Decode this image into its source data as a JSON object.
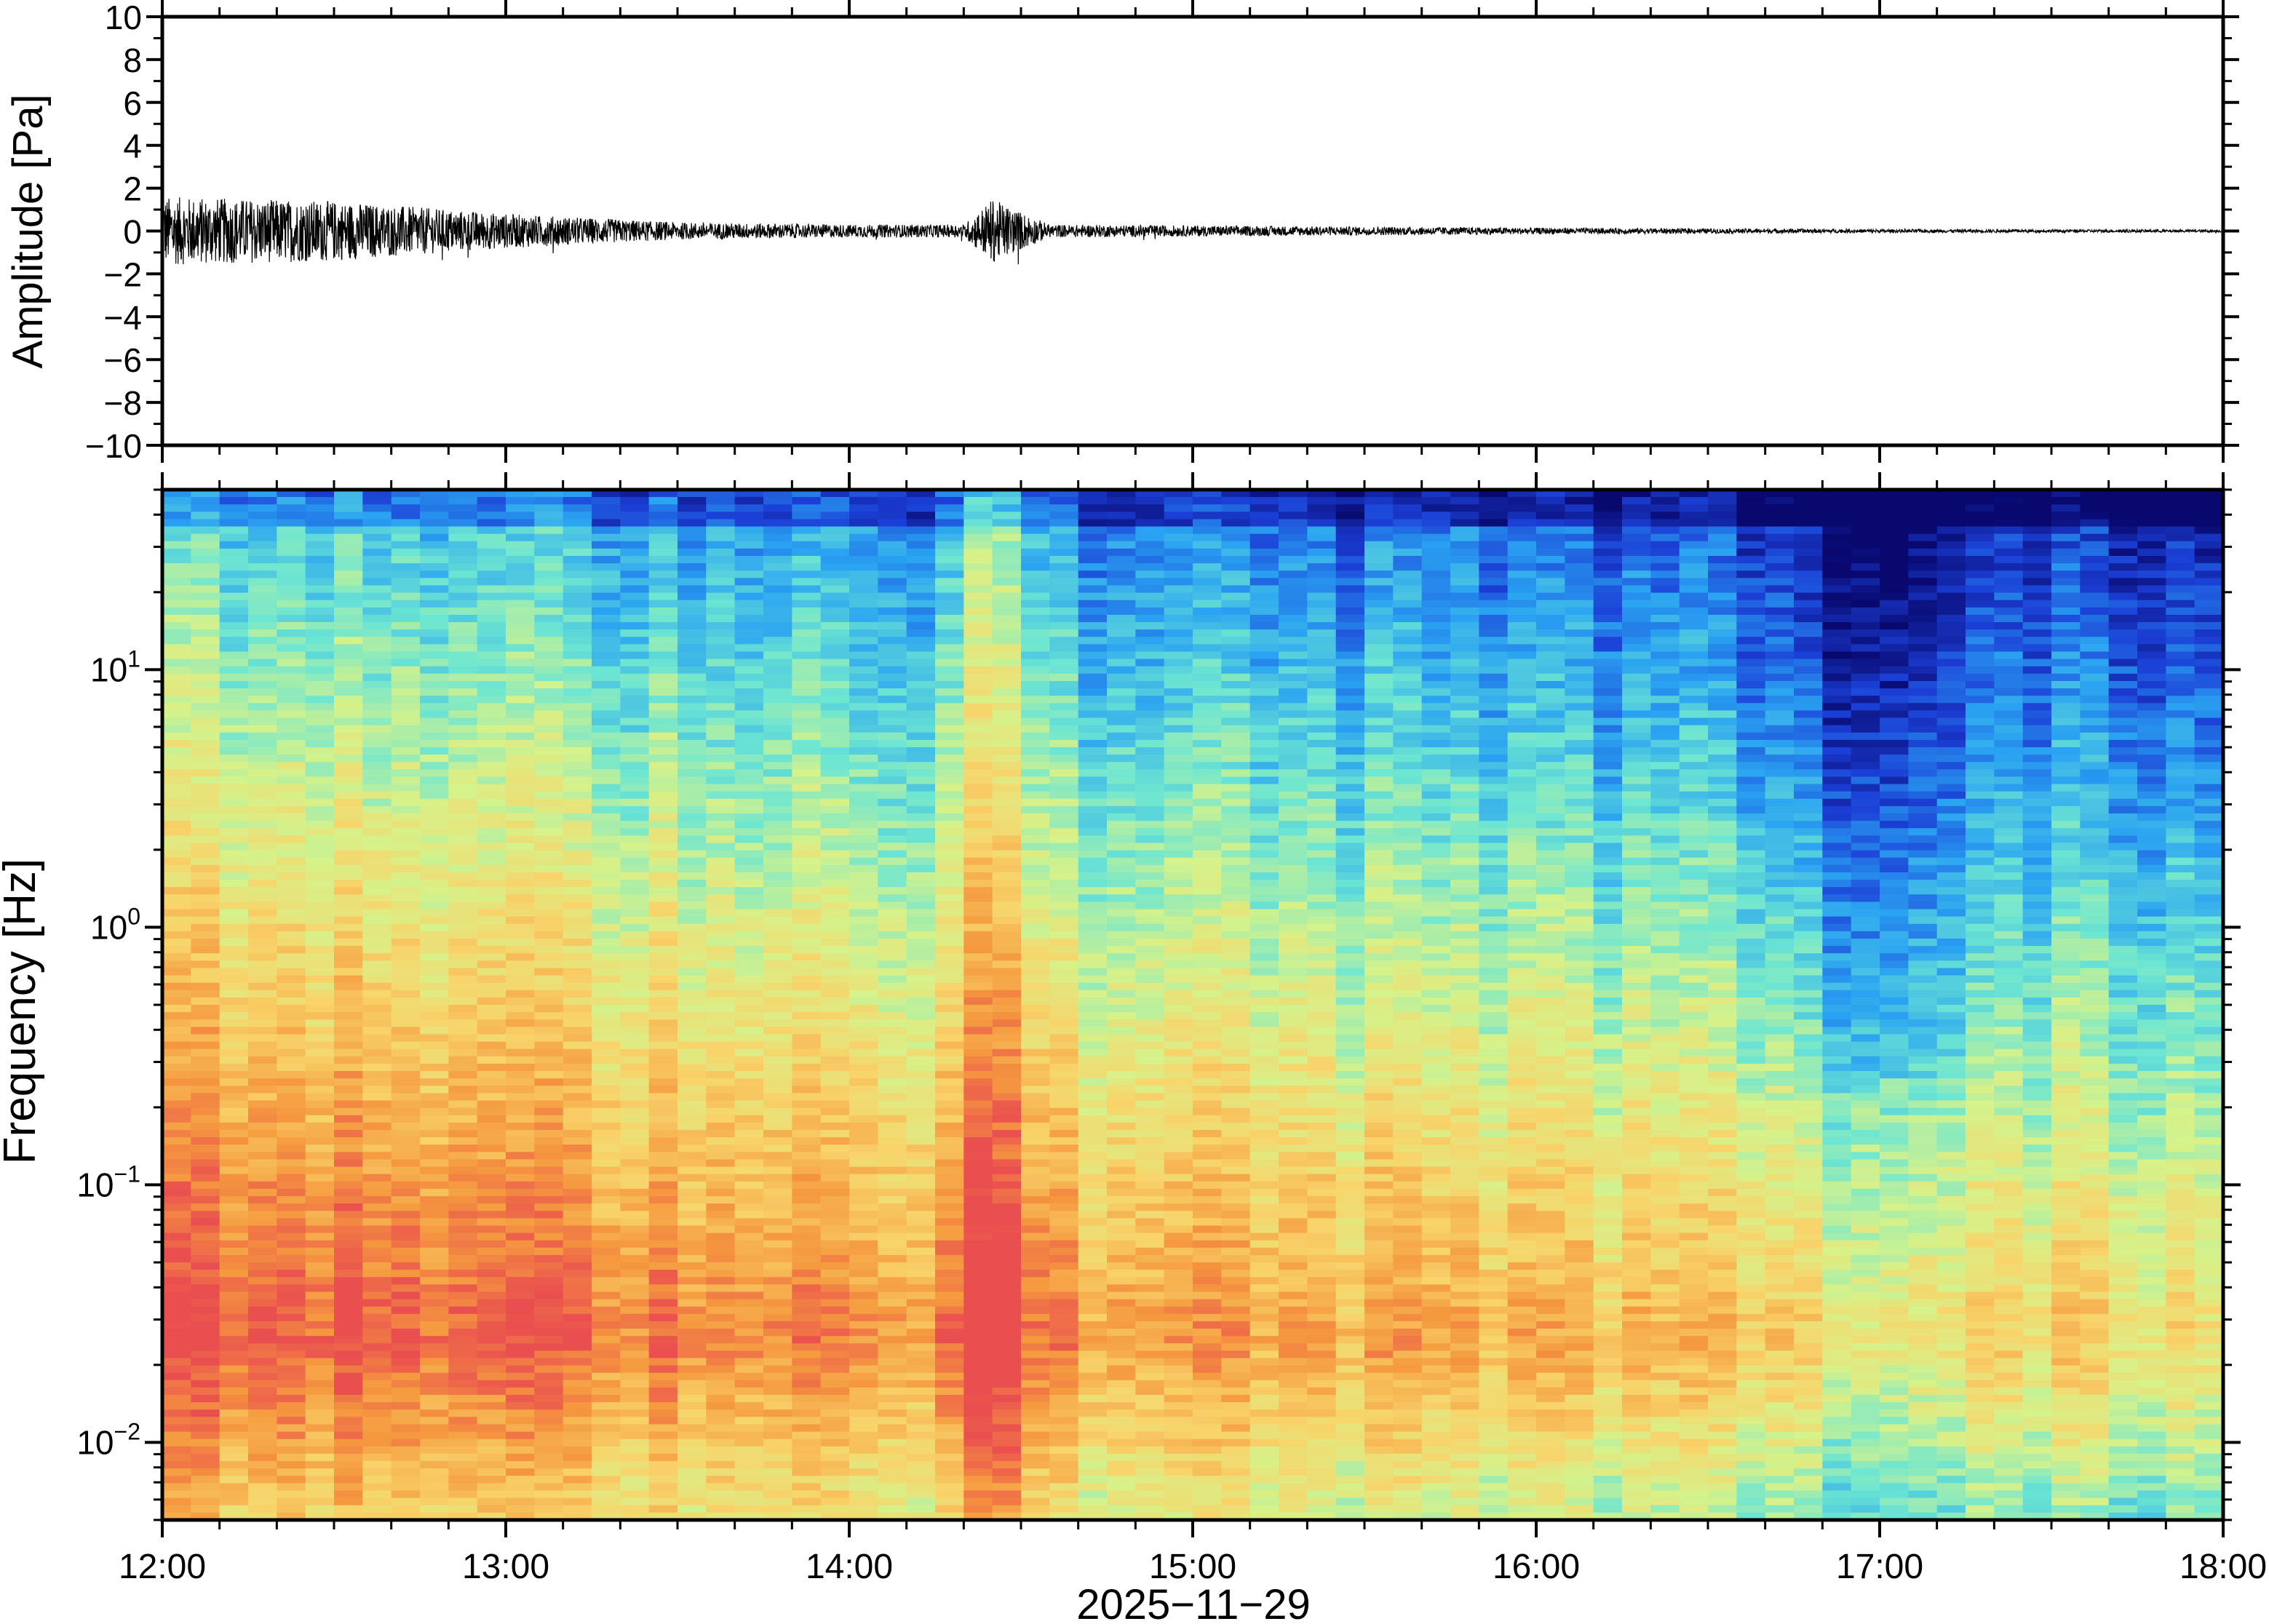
{
  "chart_data": [
    {
      "type": "line",
      "panel": "waveform",
      "ylabel": "Amplitude [Pa]",
      "ylim": [
        -10,
        10
      ],
      "y_ticks": [
        10,
        8,
        6,
        4,
        2,
        0,
        -2,
        -4,
        -6,
        -8,
        -10
      ],
      "y_tick_labels": [
        "10",
        "8",
        "6",
        "4",
        "2",
        "0",
        "−2",
        "−4",
        "−6",
        "−8",
        "−10"
      ],
      "xlim": [
        "12:00",
        "18:00"
      ],
      "envelope": {
        "times": [
          "12:00",
          "12:30",
          "13:00",
          "13:30",
          "14:00",
          "14:20",
          "14:25",
          "14:35",
          "15:00",
          "16:00",
          "17:00",
          "18:00"
        ],
        "amplitude": [
          1.6,
          1.4,
          0.8,
          0.4,
          0.3,
          0.3,
          1.5,
          0.3,
          0.25,
          0.15,
          0.08,
          0.06
        ]
      },
      "line_color": "#000000"
    },
    {
      "type": "heatmap",
      "panel": "spectrogram",
      "ylabel": "Frequency [Hz]",
      "yscale": "log",
      "ylim": [
        0.005,
        50
      ],
      "y_ticks": [
        0.01,
        0.1,
        1,
        10
      ],
      "y_tick_labels": [
        {
          "base": "10",
          "exp": "−2"
        },
        {
          "base": "10",
          "exp": "−1"
        },
        {
          "base": "10",
          "exp": "0"
        },
        {
          "base": "10",
          "exp": "1"
        }
      ],
      "xlim": [
        "12:00",
        "18:00"
      ],
      "x_ticks": [
        "12:00",
        "13:00",
        "14:00",
        "15:00",
        "16:00",
        "17:00",
        "18:00"
      ],
      "xlabel": "2025−11−29",
      "colormap": [
        "#08086e",
        "#1b3fd6",
        "#2aa3f2",
        "#6de6d2",
        "#d6f28a",
        "#f8d46a",
        "#f5993f",
        "#ea4f4f"
      ],
      "features": [
        {
          "time": "14:25",
          "description_free": true,
          "level": "high"
        },
        {
          "time": "17:00",
          "level": "low"
        }
      ]
    }
  ]
}
